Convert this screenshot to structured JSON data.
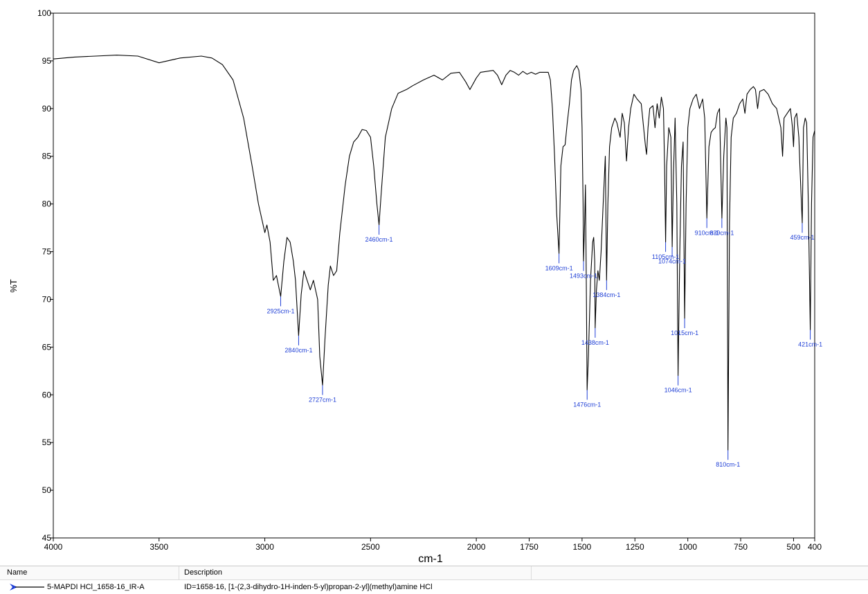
{
  "chart_data": {
    "type": "line",
    "xlabel": "cm-1",
    "ylabel": "%T",
    "xlim": [
      4000,
      400
    ],
    "ylim": [
      45,
      100
    ],
    "x_ticks": [
      4000,
      3500,
      3000,
      2500,
      2000,
      1750,
      1500,
      1250,
      1000,
      750,
      500,
      400
    ],
    "x_tick_labels": [
      "4000",
      "3500",
      "3000",
      "2500",
      "2000",
      "1750",
      "1500",
      "1250",
      "1000",
      "750",
      "500",
      "400"
    ],
    "y_ticks": [
      45,
      50,
      55,
      60,
      65,
      70,
      75,
      80,
      85,
      90,
      95,
      100
    ],
    "y_tick_labels": [
      "45",
      "50",
      "55",
      "60",
      "65",
      "70",
      "75",
      "80",
      "85",
      "90",
      "95",
      "100"
    ],
    "grid": false,
    "series": [
      {
        "name": "5-MAPDI HCl_1658-16_IR-A",
        "color": "#000000",
        "points": [
          [
            4000,
            95.2
          ],
          [
            3900,
            95.4
          ],
          [
            3800,
            95.5
          ],
          [
            3700,
            95.6
          ],
          [
            3600,
            95.5
          ],
          [
            3500,
            94.8
          ],
          [
            3400,
            95.3
          ],
          [
            3300,
            95.5
          ],
          [
            3250,
            95.3
          ],
          [
            3200,
            94.6
          ],
          [
            3150,
            93.0
          ],
          [
            3100,
            89.0
          ],
          [
            3060,
            84.0
          ],
          [
            3030,
            80.0
          ],
          [
            3000,
            77.0
          ],
          [
            2990,
            77.8
          ],
          [
            2975,
            76.0
          ],
          [
            2960,
            72.0
          ],
          [
            2945,
            72.5
          ],
          [
            2925,
            70.3
          ],
          [
            2910,
            74.0
          ],
          [
            2895,
            76.5
          ],
          [
            2880,
            76.0
          ],
          [
            2865,
            74.0
          ],
          [
            2855,
            72.0
          ],
          [
            2840,
            66.2
          ],
          [
            2828,
            70.5
          ],
          [
            2815,
            73.0
          ],
          [
            2800,
            72.0
          ],
          [
            2785,
            71.0
          ],
          [
            2770,
            72.0
          ],
          [
            2750,
            70.0
          ],
          [
            2740,
            64.0
          ],
          [
            2727,
            61.0
          ],
          [
            2715,
            66.0
          ],
          [
            2700,
            71.5
          ],
          [
            2690,
            73.5
          ],
          [
            2675,
            72.5
          ],
          [
            2660,
            73.0
          ],
          [
            2645,
            77.0
          ],
          [
            2620,
            82.0
          ],
          [
            2600,
            85.0
          ],
          [
            2580,
            86.5
          ],
          [
            2560,
            87.0
          ],
          [
            2540,
            87.8
          ],
          [
            2520,
            87.7
          ],
          [
            2500,
            87.0
          ],
          [
            2485,
            84.0
          ],
          [
            2470,
            80.0
          ],
          [
            2460,
            77.8
          ],
          [
            2450,
            81.0
          ],
          [
            2430,
            87.0
          ],
          [
            2400,
            90.0
          ],
          [
            2370,
            91.6
          ],
          [
            2330,
            92.0
          ],
          [
            2300,
            92.4
          ],
          [
            2250,
            93.0
          ],
          [
            2200,
            93.5
          ],
          [
            2160,
            93.0
          ],
          [
            2120,
            93.7
          ],
          [
            2080,
            93.8
          ],
          [
            2050,
            92.8
          ],
          [
            2030,
            92.0
          ],
          [
            2000,
            93.2
          ],
          [
            1980,
            93.8
          ],
          [
            1950,
            93.9
          ],
          [
            1920,
            94.0
          ],
          [
            1900,
            93.5
          ],
          [
            1880,
            92.5
          ],
          [
            1860,
            93.5
          ],
          [
            1840,
            94.0
          ],
          [
            1820,
            93.8
          ],
          [
            1800,
            93.5
          ],
          [
            1780,
            93.9
          ],
          [
            1760,
            93.6
          ],
          [
            1740,
            93.8
          ],
          [
            1720,
            93.6
          ],
          [
            1700,
            93.8
          ],
          [
            1680,
            93.8
          ],
          [
            1660,
            93.8
          ],
          [
            1650,
            93.0
          ],
          [
            1640,
            90.0
          ],
          [
            1630,
            85.0
          ],
          [
            1620,
            79.0
          ],
          [
            1609,
            74.8
          ],
          [
            1600,
            84.0
          ],
          [
            1590,
            86.0
          ],
          [
            1580,
            86.2
          ],
          [
            1570,
            88.5
          ],
          [
            1560,
            90.5
          ],
          [
            1550,
            93.0
          ],
          [
            1540,
            94.0
          ],
          [
            1525,
            94.5
          ],
          [
            1515,
            94.0
          ],
          [
            1505,
            92.0
          ],
          [
            1500,
            88.0
          ],
          [
            1495,
            80.0
          ],
          [
            1493,
            74.0
          ],
          [
            1488,
            78.0
          ],
          [
            1484,
            82.0
          ],
          [
            1480,
            72.0
          ],
          [
            1476,
            60.5
          ],
          [
            1470,
            64.0
          ],
          [
            1460,
            72.0
          ],
          [
            1450,
            76.0
          ],
          [
            1445,
            76.5
          ],
          [
            1440,
            74.0
          ],
          [
            1438,
            67.0
          ],
          [
            1432,
            71.0
          ],
          [
            1425,
            73.0
          ],
          [
            1418,
            72.0
          ],
          [
            1410,
            75.0
          ],
          [
            1400,
            80.0
          ],
          [
            1390,
            85.0
          ],
          [
            1384,
            72.0
          ],
          [
            1378,
            80.0
          ],
          [
            1370,
            86.0
          ],
          [
            1360,
            88.0
          ],
          [
            1345,
            89.0
          ],
          [
            1335,
            88.5
          ],
          [
            1320,
            87.0
          ],
          [
            1310,
            89.5
          ],
          [
            1300,
            88.5
          ],
          [
            1290,
            84.5
          ],
          [
            1280,
            88.0
          ],
          [
            1270,
            90.0
          ],
          [
            1255,
            91.5
          ],
          [
            1240,
            91.0
          ],
          [
            1220,
            90.5
          ],
          [
            1200,
            86.0
          ],
          [
            1195,
            85.2
          ],
          [
            1188,
            88.0
          ],
          [
            1180,
            90.0
          ],
          [
            1165,
            90.3
          ],
          [
            1155,
            88.0
          ],
          [
            1145,
            90.5
          ],
          [
            1135,
            89.0
          ],
          [
            1125,
            91.2
          ],
          [
            1115,
            90.0
          ],
          [
            1110,
            84.0
          ],
          [
            1105,
            76.0
          ],
          [
            1100,
            84.0
          ],
          [
            1090,
            88.0
          ],
          [
            1080,
            87.0
          ],
          [
            1074,
            75.5
          ],
          [
            1068,
            83.0
          ],
          [
            1060,
            89.0
          ],
          [
            1052,
            80.0
          ],
          [
            1046,
            62.0
          ],
          [
            1038,
            75.0
          ],
          [
            1030,
            84.0
          ],
          [
            1022,
            86.5
          ],
          [
            1015,
            68.0
          ],
          [
            1008,
            80.0
          ],
          [
            1000,
            88.0
          ],
          [
            990,
            90.0
          ],
          [
            975,
            91.0
          ],
          [
            960,
            91.5
          ],
          [
            945,
            90.0
          ],
          [
            930,
            91.0
          ],
          [
            920,
            89.0
          ],
          [
            910,
            78.5
          ],
          [
            900,
            86.0
          ],
          [
            890,
            87.5
          ],
          [
            880,
            87.8
          ],
          [
            870,
            88.0
          ],
          [
            860,
            89.5
          ],
          [
            850,
            90.0
          ],
          [
            839,
            78.5
          ],
          [
            830,
            85.0
          ],
          [
            820,
            89.0
          ],
          [
            815,
            88.0
          ],
          [
            810,
            54.2
          ],
          [
            803,
            78.0
          ],
          [
            795,
            87.0
          ],
          [
            785,
            89.0
          ],
          [
            770,
            89.5
          ],
          [
            755,
            90.5
          ],
          [
            740,
            91.0
          ],
          [
            730,
            89.5
          ],
          [
            720,
            91.5
          ],
          [
            705,
            92.0
          ],
          [
            690,
            92.3
          ],
          [
            680,
            92.0
          ],
          [
            670,
            90.0
          ],
          [
            660,
            91.8
          ],
          [
            640,
            92.0
          ],
          [
            620,
            91.5
          ],
          [
            600,
            90.5
          ],
          [
            580,
            90.0
          ],
          [
            560,
            88.0
          ],
          [
            552,
            85.0
          ],
          [
            545,
            89.0
          ],
          [
            530,
            89.5
          ],
          [
            515,
            90.0
          ],
          [
            505,
            88.0
          ],
          [
            500,
            86.0
          ],
          [
            495,
            89.0
          ],
          [
            485,
            89.5
          ],
          [
            475,
            87.0
          ],
          [
            470,
            84.0
          ],
          [
            459,
            78.0
          ],
          [
            453,
            88.0
          ],
          [
            445,
            89.0
          ],
          [
            438,
            88.5
          ],
          [
            430,
            80.0
          ],
          [
            421,
            66.8
          ],
          [
            415,
            80.0
          ],
          [
            408,
            87.0
          ],
          [
            400,
            87.7
          ]
        ]
      }
    ],
    "annotations": [
      {
        "x": 2925,
        "y": 70.3,
        "text": "2925cm-1"
      },
      {
        "x": 2840,
        "y": 66.2,
        "text": "2840cm-1"
      },
      {
        "x": 2727,
        "y": 61.0,
        "text": "2727cm-1"
      },
      {
        "x": 2460,
        "y": 77.8,
        "text": "2460cm-1"
      },
      {
        "x": 1609,
        "y": 74.8,
        "text": "1609cm-1"
      },
      {
        "x": 1493,
        "y": 74.0,
        "text": "1493cm-1"
      },
      {
        "x": 1476,
        "y": 60.5,
        "text": "1476cm-1"
      },
      {
        "x": 1438,
        "y": 67.0,
        "text": "1438cm-1"
      },
      {
        "x": 1384,
        "y": 72.0,
        "text": "1384cm-1"
      },
      {
        "x": 1105,
        "y": 76.0,
        "text": "1105cm-1"
      },
      {
        "x": 1074,
        "y": 75.5,
        "text": "1074cm-1"
      },
      {
        "x": 1046,
        "y": 62.0,
        "text": "1046cm-1"
      },
      {
        "x": 1015,
        "y": 68.0,
        "text": "1015cm-1"
      },
      {
        "x": 910,
        "y": 78.5,
        "text": "910cm-1"
      },
      {
        "x": 839,
        "y": 78.5,
        "text": "839cm-1"
      },
      {
        "x": 810,
        "y": 54.2,
        "text": "810cm-1"
      },
      {
        "x": 459,
        "y": 78.0,
        "text": "459cm-1"
      },
      {
        "x": 421,
        "y": 66.8,
        "text": "421cm-1"
      }
    ],
    "annotation_color": "#1f3fd6"
  },
  "legend": {
    "headers": {
      "name": "Name",
      "description": "Description"
    },
    "rows": [
      {
        "name": "5-MAPDI HCl_1658-16_IR-A",
        "description": "ID=1658-16,  [1-(2,3-dihydro-1H-inden-5-yl)propan-2-yl](methyl)amine HCl",
        "marker_color": "#1f3fd6"
      }
    ]
  }
}
